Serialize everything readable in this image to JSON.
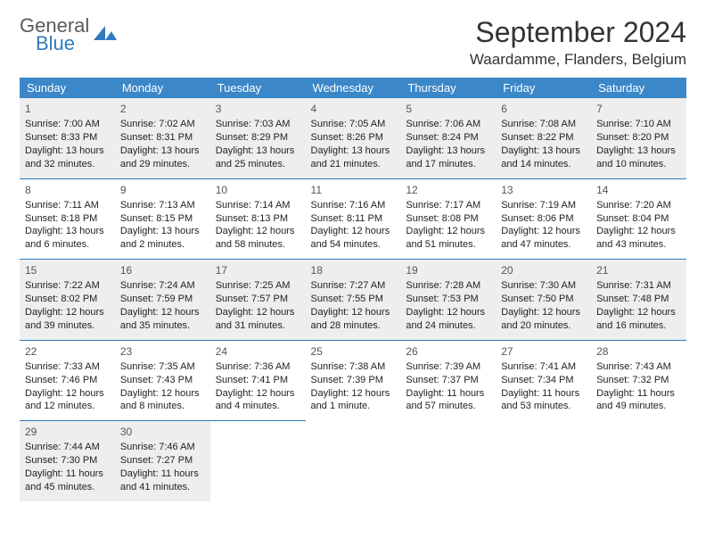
{
  "logo": {
    "line1": "General",
    "line2": "Blue"
  },
  "title": "September 2024",
  "location": "Waardamme, Flanders, Belgium",
  "colors": {
    "header_bg": "#3b87c8",
    "header_text": "#ffffff",
    "rule": "#2f7bbf",
    "shaded": "#eeeeee",
    "logo_blue": "#2f7bbf",
    "logo_gray": "#5a5a5a",
    "page_bg": "#ffffff"
  },
  "weekdays": [
    "Sunday",
    "Monday",
    "Tuesday",
    "Wednesday",
    "Thursday",
    "Friday",
    "Saturday"
  ],
  "weeks": [
    [
      {
        "n": "1",
        "sunrise": "7:00 AM",
        "sunset": "8:33 PM",
        "daylight": "13 hours and 32 minutes."
      },
      {
        "n": "2",
        "sunrise": "7:02 AM",
        "sunset": "8:31 PM",
        "daylight": "13 hours and 29 minutes."
      },
      {
        "n": "3",
        "sunrise": "7:03 AM",
        "sunset": "8:29 PM",
        "daylight": "13 hours and 25 minutes."
      },
      {
        "n": "4",
        "sunrise": "7:05 AM",
        "sunset": "8:26 PM",
        "daylight": "13 hours and 21 minutes."
      },
      {
        "n": "5",
        "sunrise": "7:06 AM",
        "sunset": "8:24 PM",
        "daylight": "13 hours and 17 minutes."
      },
      {
        "n": "6",
        "sunrise": "7:08 AM",
        "sunset": "8:22 PM",
        "daylight": "13 hours and 14 minutes."
      },
      {
        "n": "7",
        "sunrise": "7:10 AM",
        "sunset": "8:20 PM",
        "daylight": "13 hours and 10 minutes."
      }
    ],
    [
      {
        "n": "8",
        "sunrise": "7:11 AM",
        "sunset": "8:18 PM",
        "daylight": "13 hours and 6 minutes."
      },
      {
        "n": "9",
        "sunrise": "7:13 AM",
        "sunset": "8:15 PM",
        "daylight": "13 hours and 2 minutes."
      },
      {
        "n": "10",
        "sunrise": "7:14 AM",
        "sunset": "8:13 PM",
        "daylight": "12 hours and 58 minutes."
      },
      {
        "n": "11",
        "sunrise": "7:16 AM",
        "sunset": "8:11 PM",
        "daylight": "12 hours and 54 minutes."
      },
      {
        "n": "12",
        "sunrise": "7:17 AM",
        "sunset": "8:08 PM",
        "daylight": "12 hours and 51 minutes."
      },
      {
        "n": "13",
        "sunrise": "7:19 AM",
        "sunset": "8:06 PM",
        "daylight": "12 hours and 47 minutes."
      },
      {
        "n": "14",
        "sunrise": "7:20 AM",
        "sunset": "8:04 PM",
        "daylight": "12 hours and 43 minutes."
      }
    ],
    [
      {
        "n": "15",
        "sunrise": "7:22 AM",
        "sunset": "8:02 PM",
        "daylight": "12 hours and 39 minutes."
      },
      {
        "n": "16",
        "sunrise": "7:24 AM",
        "sunset": "7:59 PM",
        "daylight": "12 hours and 35 minutes."
      },
      {
        "n": "17",
        "sunrise": "7:25 AM",
        "sunset": "7:57 PM",
        "daylight": "12 hours and 31 minutes."
      },
      {
        "n": "18",
        "sunrise": "7:27 AM",
        "sunset": "7:55 PM",
        "daylight": "12 hours and 28 minutes."
      },
      {
        "n": "19",
        "sunrise": "7:28 AM",
        "sunset": "7:53 PM",
        "daylight": "12 hours and 24 minutes."
      },
      {
        "n": "20",
        "sunrise": "7:30 AM",
        "sunset": "7:50 PM",
        "daylight": "12 hours and 20 minutes."
      },
      {
        "n": "21",
        "sunrise": "7:31 AM",
        "sunset": "7:48 PM",
        "daylight": "12 hours and 16 minutes."
      }
    ],
    [
      {
        "n": "22",
        "sunrise": "7:33 AM",
        "sunset": "7:46 PM",
        "daylight": "12 hours and 12 minutes."
      },
      {
        "n": "23",
        "sunrise": "7:35 AM",
        "sunset": "7:43 PM",
        "daylight": "12 hours and 8 minutes."
      },
      {
        "n": "24",
        "sunrise": "7:36 AM",
        "sunset": "7:41 PM",
        "daylight": "12 hours and 4 minutes."
      },
      {
        "n": "25",
        "sunrise": "7:38 AM",
        "sunset": "7:39 PM",
        "daylight": "12 hours and 1 minute."
      },
      {
        "n": "26",
        "sunrise": "7:39 AM",
        "sunset": "7:37 PM",
        "daylight": "11 hours and 57 minutes."
      },
      {
        "n": "27",
        "sunrise": "7:41 AM",
        "sunset": "7:34 PM",
        "daylight": "11 hours and 53 minutes."
      },
      {
        "n": "28",
        "sunrise": "7:43 AM",
        "sunset": "7:32 PM",
        "daylight": "11 hours and 49 minutes."
      }
    ],
    [
      {
        "n": "29",
        "sunrise": "7:44 AM",
        "sunset": "7:30 PM",
        "daylight": "11 hours and 45 minutes."
      },
      {
        "n": "30",
        "sunrise": "7:46 AM",
        "sunset": "7:27 PM",
        "daylight": "11 hours and 41 minutes."
      },
      null,
      null,
      null,
      null,
      null
    ]
  ],
  "labels": {
    "sunrise": "Sunrise: ",
    "sunset": "Sunset: ",
    "daylight": "Daylight: "
  }
}
